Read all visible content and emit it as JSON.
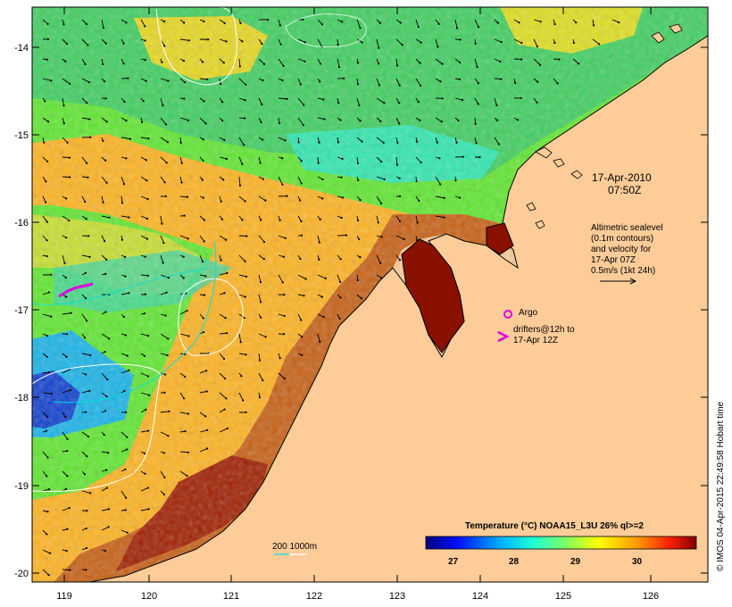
{
  "map": {
    "timestamp_date": "17-Apr-2010",
    "timestamp_time": "07:50Z",
    "altimetry_line1": "Altimetric sealevel",
    "altimetry_line2": "(0.1m contours)",
    "altimetry_line3": "and velocity for",
    "altimetry_line4": "17-Apr 07Z",
    "altimetry_line5": "0.5m/s (1kt 24h)",
    "argo_label": "Argo",
    "drifter_line1": "drifters@12h to",
    "drifter_line2": "17-Apr 12Z",
    "bathy_label": "200 1000m",
    "colorbar_title": "Temperature (°C) NOAA15_L3U 26% ql>=2",
    "colorbar_ticks": [
      "27",
      "28",
      "29",
      "30"
    ],
    "side_credit": "© IMOS 04-Apr-2015 22:49:58 Hobart time",
    "y_ticks": [
      "-14",
      "-15",
      "-16",
      "-17",
      "-18",
      "-19",
      "-20"
    ],
    "x_ticks": [
      "119",
      "120",
      "121",
      "122",
      "123",
      "124",
      "125",
      "126"
    ],
    "colors": {
      "land": "#fdcc99",
      "cold": "#0000c8",
      "mid": "#00e000",
      "warm": "#ffc800",
      "hot": "#a00000",
      "argo": "#e000e0",
      "contour": "#ffffff",
      "bathy_line": "#00e0e0"
    }
  }
}
